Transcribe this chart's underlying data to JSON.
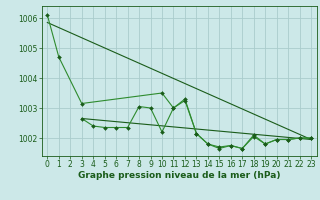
{
  "background_color": "#cce8e8",
  "grid_color": "#aacccc",
  "line_color_dark": "#1a5c1a",
  "line_color_med": "#2e8b2e",
  "xlabel": "Graphe pression niveau de la mer (hPa)",
  "xlabel_fontsize": 6.5,
  "tick_fontsize": 5.5,
  "ylim": [
    1001.4,
    1006.4
  ],
  "xlim": [
    -0.5,
    23.5
  ],
  "yticks": [
    1002,
    1003,
    1004,
    1005,
    1006
  ],
  "xticks": [
    0,
    1,
    2,
    3,
    4,
    5,
    6,
    7,
    8,
    9,
    10,
    11,
    12,
    13,
    14,
    15,
    16,
    17,
    18,
    19,
    20,
    21,
    22,
    23
  ],
  "series1_x": [
    0,
    1,
    3,
    10,
    11,
    12,
    13,
    14,
    15,
    16,
    17,
    18,
    19,
    20,
    21,
    22,
    23
  ],
  "series1_y": [
    1006.1,
    1004.7,
    1003.15,
    1003.5,
    1003.0,
    1003.3,
    1002.15,
    1001.8,
    1001.65,
    1001.75,
    1001.65,
    1002.05,
    1001.8,
    1001.95,
    1001.95,
    1002.0,
    1002.0
  ],
  "series2_x": [
    3,
    4,
    5,
    6,
    7,
    8,
    9,
    10,
    11,
    12,
    13,
    14,
    15,
    16,
    17,
    18,
    19,
    20,
    21,
    22,
    23
  ],
  "series2_y": [
    1002.65,
    1002.4,
    1002.35,
    1002.35,
    1002.35,
    1003.05,
    1003.0,
    1002.2,
    1003.0,
    1003.25,
    1002.15,
    1001.8,
    1001.7,
    1001.75,
    1001.65,
    1002.1,
    1001.8,
    1001.95,
    1001.95,
    1002.0,
    1002.0
  ],
  "trend1_x": [
    0,
    23
  ],
  "trend1_y": [
    1005.85,
    1001.95
  ],
  "trend2_x": [
    3,
    23
  ],
  "trend2_y": [
    1002.65,
    1001.95
  ]
}
